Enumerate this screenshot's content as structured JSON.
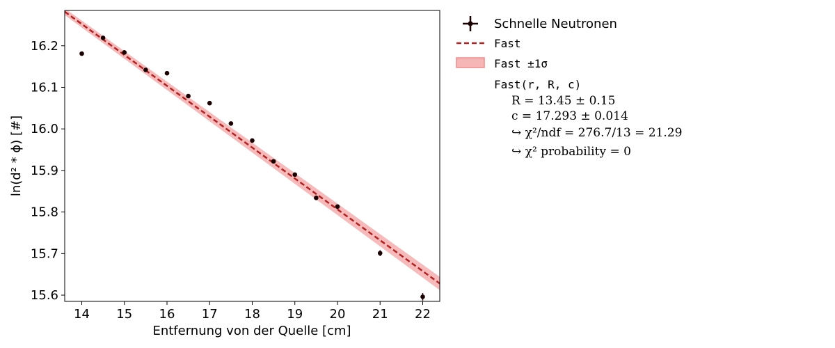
{
  "chart_data": {
    "type": "scatter",
    "xlabel": "Entfernung von der Quelle [cm]",
    "ylabel": "ln(d² * ϕ) [#]",
    "xlim": [
      13.6,
      22.4
    ],
    "ylim": [
      15.585,
      16.285
    ],
    "x_ticks": [
      "14",
      "15",
      "16",
      "17",
      "18",
      "19",
      "20",
      "21",
      "22"
    ],
    "y_ticks": [
      "15.6",
      "15.7",
      "15.8",
      "15.9",
      "16.0",
      "16.1",
      "16.2"
    ],
    "grid": false,
    "legend_position": "outside-right",
    "series": [
      {
        "name": "Schnelle Neutronen",
        "kind": "errorbar",
        "color": "#1a0000",
        "x": [
          14,
          14.5,
          15,
          15.5,
          16,
          16.5,
          17,
          17.5,
          18,
          18.5,
          19,
          19.5,
          20,
          21,
          22
        ],
        "y": [
          16.181,
          16.219,
          16.184,
          16.142,
          16.134,
          16.079,
          16.062,
          16.013,
          15.972,
          15.922,
          15.89,
          15.834,
          15.813,
          15.701,
          15.596
        ],
        "yerr": [
          0.003,
          0.003,
          0.003,
          0.003,
          0.003,
          0.003,
          0.003,
          0.003,
          0.004,
          0.004,
          0.005,
          0.005,
          0.005,
          0.007,
          0.009
        ]
      },
      {
        "name": "Fast",
        "kind": "fit-line",
        "color": "#b22222",
        "x": [
          13.6,
          22.4
        ],
        "y": [
          16.282,
          15.628
        ]
      },
      {
        "name": "Fast ±1σ",
        "kind": "band",
        "color": "#f4a3a3",
        "x": [
          13.6,
          22.4
        ],
        "y_low": [
          16.274,
          15.612
        ],
        "y_high": [
          16.29,
          15.644
        ]
      }
    ],
    "legend": {
      "points_label": "Schnelle Neutronen",
      "fit_label": "Fast",
      "band_label": "Fast ±1σ",
      "fit_function": "Fast(r, R, c)",
      "param_R": "R = 13.45 ± 0.15",
      "param_c": "c = 17.293 ± 0.014",
      "chi2_ndf": "↪ χ²/ndf = 276.7/13 = 21.29",
      "chi2_prob": "↪ χ² probability = 0"
    }
  }
}
